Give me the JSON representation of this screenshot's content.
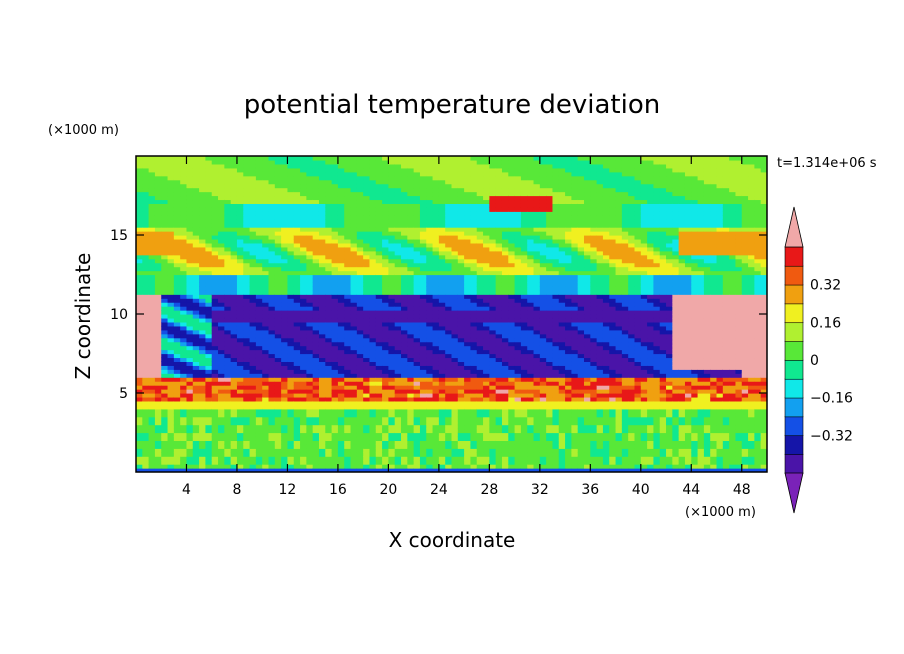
{
  "chart_data": {
    "type": "heatmap",
    "title": "potential temperature deviation",
    "xlabel": "X coordinate",
    "ylabel": "Z coordinate",
    "x_unit": "(×1000 m)",
    "y_unit": "(×1000 m)",
    "time_label": "t=1.314e+06 s",
    "xlim": [
      0,
      50
    ],
    "ylim": [
      0,
      20
    ],
    "x_ticks": [
      4,
      8,
      12,
      16,
      20,
      24,
      28,
      32,
      36,
      40,
      44,
      48
    ],
    "y_ticks": [
      5,
      10,
      15
    ],
    "grid": false,
    "colorbar": {
      "placement": "right",
      "tick_values": [
        0.32,
        0.16,
        0,
        -0.16,
        -0.32
      ],
      "tick_labels": [
        "0.32",
        "0.16",
        "0",
        "−0.16",
        "−0.32"
      ],
      "levels": [
        -0.48,
        -0.4,
        -0.32,
        -0.24,
        -0.16,
        -0.08,
        0,
        0.08,
        0.16,
        0.24,
        0.32,
        0.4,
        0.48
      ],
      "colors": [
        "#7a22b8",
        "#4a14a8",
        "#1515a8",
        "#1450e6",
        "#12a0f0",
        "#10e8e8",
        "#10e890",
        "#58e838",
        "#b0f030",
        "#f0f020",
        "#f0a010",
        "#f05a10",
        "#e81818",
        "#f0a8a8"
      ]
    },
    "bands": [
      {
        "z_range": [
          0,
          0.3
        ],
        "description_level": 0.0
      },
      {
        "z_range": [
          0.3,
          4.0
        ],
        "level": 0.04
      },
      {
        "z_range": [
          4.0,
          4.5
        ],
        "level": 0.2
      },
      {
        "z_range": [
          4.5,
          6.0
        ],
        "level": 0.36
      },
      {
        "z_range": [
          6.0,
          11.0
        ],
        "level": -0.36
      },
      {
        "z_range": [
          11.0,
          12.5
        ],
        "level": -0.1
      },
      {
        "z_range": [
          12.5,
          15.5
        ],
        "level": 0.12
      },
      {
        "z_range": [
          15.5,
          17.0
        ],
        "level": -0.05
      },
      {
        "z_range": [
          17.0,
          20.0
        ],
        "level": 0.06
      }
    ]
  }
}
